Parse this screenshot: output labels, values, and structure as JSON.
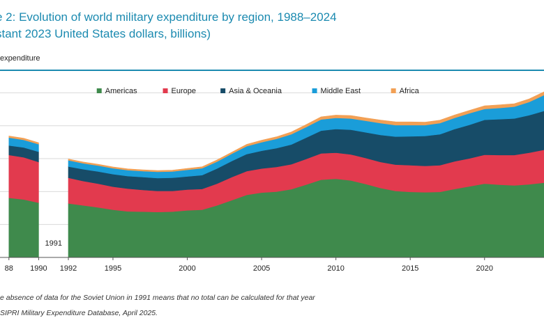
{
  "figure": {
    "title_line1": "e 2: Evolution of world military expenditure by region, 1988–2024",
    "title_line2": "stant 2023 United States dollars, billions)",
    "subhead": "expenditure",
    "note": "e absence of data for the Soviet Union in 1991 means that no total can be calculated for that year",
    "source": "SIPRI Military Expenditure Database, April 2025."
  },
  "chart_data": {
    "type": "area",
    "stacked": true,
    "x": [
      1988,
      1989,
      1990,
      1992,
      1993,
      1994,
      1995,
      1996,
      1997,
      1998,
      1999,
      2000,
      2001,
      2002,
      2003,
      2004,
      2005,
      2006,
      2007,
      2008,
      2009,
      2010,
      2011,
      2012,
      2013,
      2014,
      2015,
      2016,
      2017,
      2018,
      2019,
      2020,
      2021,
      2022,
      2023,
      2024
    ],
    "xlim": [
      1987.4,
      2024
    ],
    "x_ticks": [
      "88",
      "1990",
      "1992",
      "1995",
      "2000",
      "2005",
      "2010",
      "2015",
      "2020"
    ],
    "x_tick_values": [
      1988,
      1990,
      1992,
      1995,
      2000,
      2005,
      2010,
      2015,
      2020
    ],
    "gap_year_label": "1991",
    "gap_year": 1991,
    "ylim": [
      0,
      2800
    ],
    "y_gridlines": [
      0,
      500,
      1000,
      1500,
      2000,
      2500
    ],
    "legend_position": "top",
    "series": [
      {
        "name": "Americas",
        "color": "#3f8a4c",
        "values": [
          905,
          880,
          830,
          820,
          790,
          760,
          725,
          700,
          695,
          690,
          695,
          715,
          725,
          790,
          870,
          950,
          985,
          1000,
          1035,
          1105,
          1180,
          1195,
          1170,
          1115,
          1055,
          1010,
          995,
          990,
          995,
          1040,
          1080,
          1120,
          1105,
          1095,
          1110,
          1135
        ]
      },
      {
        "name": "Europe",
        "color": "#e23a4e",
        "values": [
          650,
          640,
          620,
          390,
          370,
          360,
          350,
          345,
          330,
          320,
          315,
          315,
          315,
          330,
          350,
          360,
          365,
          375,
          380,
          390,
          400,
          395,
          395,
          395,
          395,
          400,
          405,
          400,
          405,
          420,
          425,
          440,
          450,
          460,
          480,
          500
        ]
      },
      {
        "name": "Asia & Oceania",
        "color": "#174c68",
        "values": [
          145,
          150,
          155,
          170,
          180,
          185,
          190,
          190,
          195,
          195,
          200,
          200,
          210,
          230,
          245,
          260,
          270,
          285,
          300,
          325,
          345,
          360,
          375,
          390,
          410,
          425,
          440,
          455,
          470,
          490,
          510,
          530,
          545,
          555,
          570,
          590
        ]
      },
      {
        "name": "Middle East",
        "color": "#1a9dd9",
        "values": [
          120,
          115,
          115,
          95,
          90,
          90,
          90,
          90,
          90,
          95,
          95,
          100,
          105,
          105,
          110,
          120,
          130,
          140,
          155,
          160,
          170,
          170,
          170,
          175,
          180,
          175,
          170,
          165,
          170,
          170,
          175,
          165,
          170,
          180,
          200,
          240
        ]
      },
      {
        "name": "Africa",
        "color": "#f2a055",
        "values": [
          25,
          25,
          22,
          20,
          20,
          20,
          20,
          20,
          20,
          20,
          20,
          22,
          22,
          25,
          25,
          28,
          30,
          32,
          35,
          38,
          40,
          42,
          45,
          45,
          47,
          50,
          48,
          45,
          45,
          45,
          45,
          48,
          47,
          45,
          48,
          50
        ]
      }
    ]
  }
}
